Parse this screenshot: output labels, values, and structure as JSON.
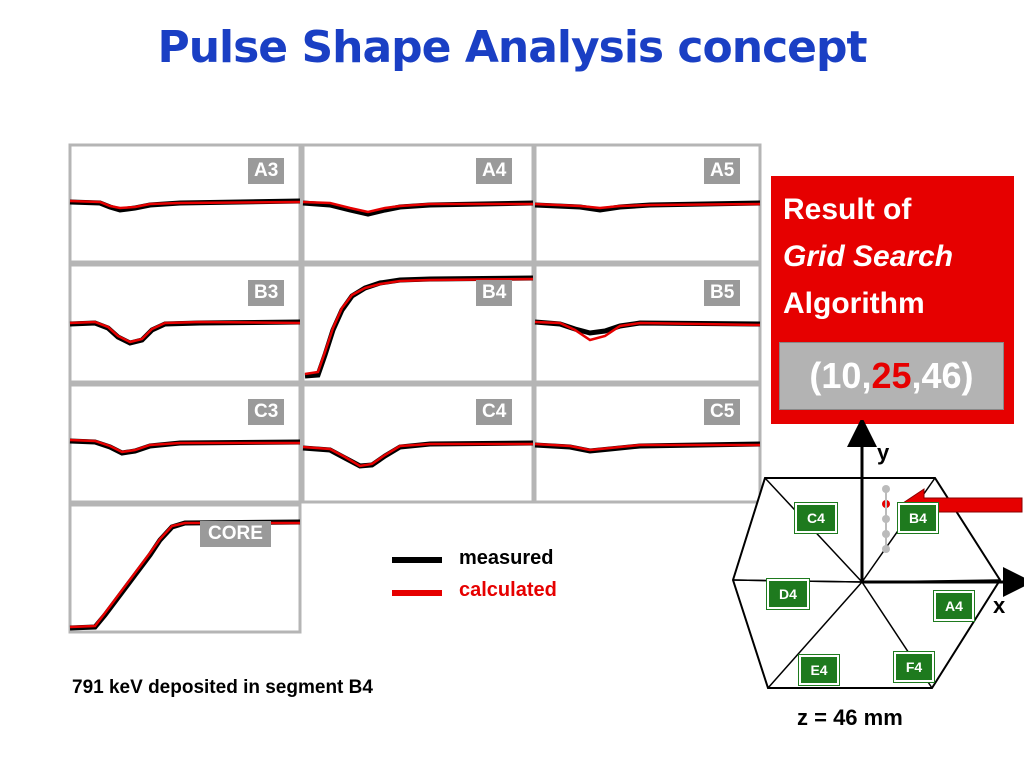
{
  "title": "Pulse Shape Analysis concept",
  "segments": {
    "A3": "A3",
    "A4": "A4",
    "A5": "A5",
    "B3": "B3",
    "B4": "B4",
    "B5": "B5",
    "C3": "C3",
    "C4": "C4",
    "C5": "C5",
    "CORE": "CORE"
  },
  "legend": {
    "measured": "measured",
    "calculated": "calculated",
    "measured_color": "#000000",
    "calculated_color": "#e60000"
  },
  "caption": "791 keV deposited in segment B4",
  "result": {
    "line1": "Result of",
    "line2": "Grid Search",
    "line3": "Algorithm",
    "coord_open": "(10,",
    "coord_highlight": "25",
    "coord_close": ",46)"
  },
  "hex": {
    "y_axis": "y",
    "x_axis": "x",
    "seg_c4": "C4",
    "seg_b4": "B4",
    "seg_d4": "D4",
    "seg_a4": "A4",
    "seg_e4": "E4",
    "seg_f4": "F4",
    "segment_color": "#1e7a1e"
  },
  "z_label": "z = 46 mm"
}
